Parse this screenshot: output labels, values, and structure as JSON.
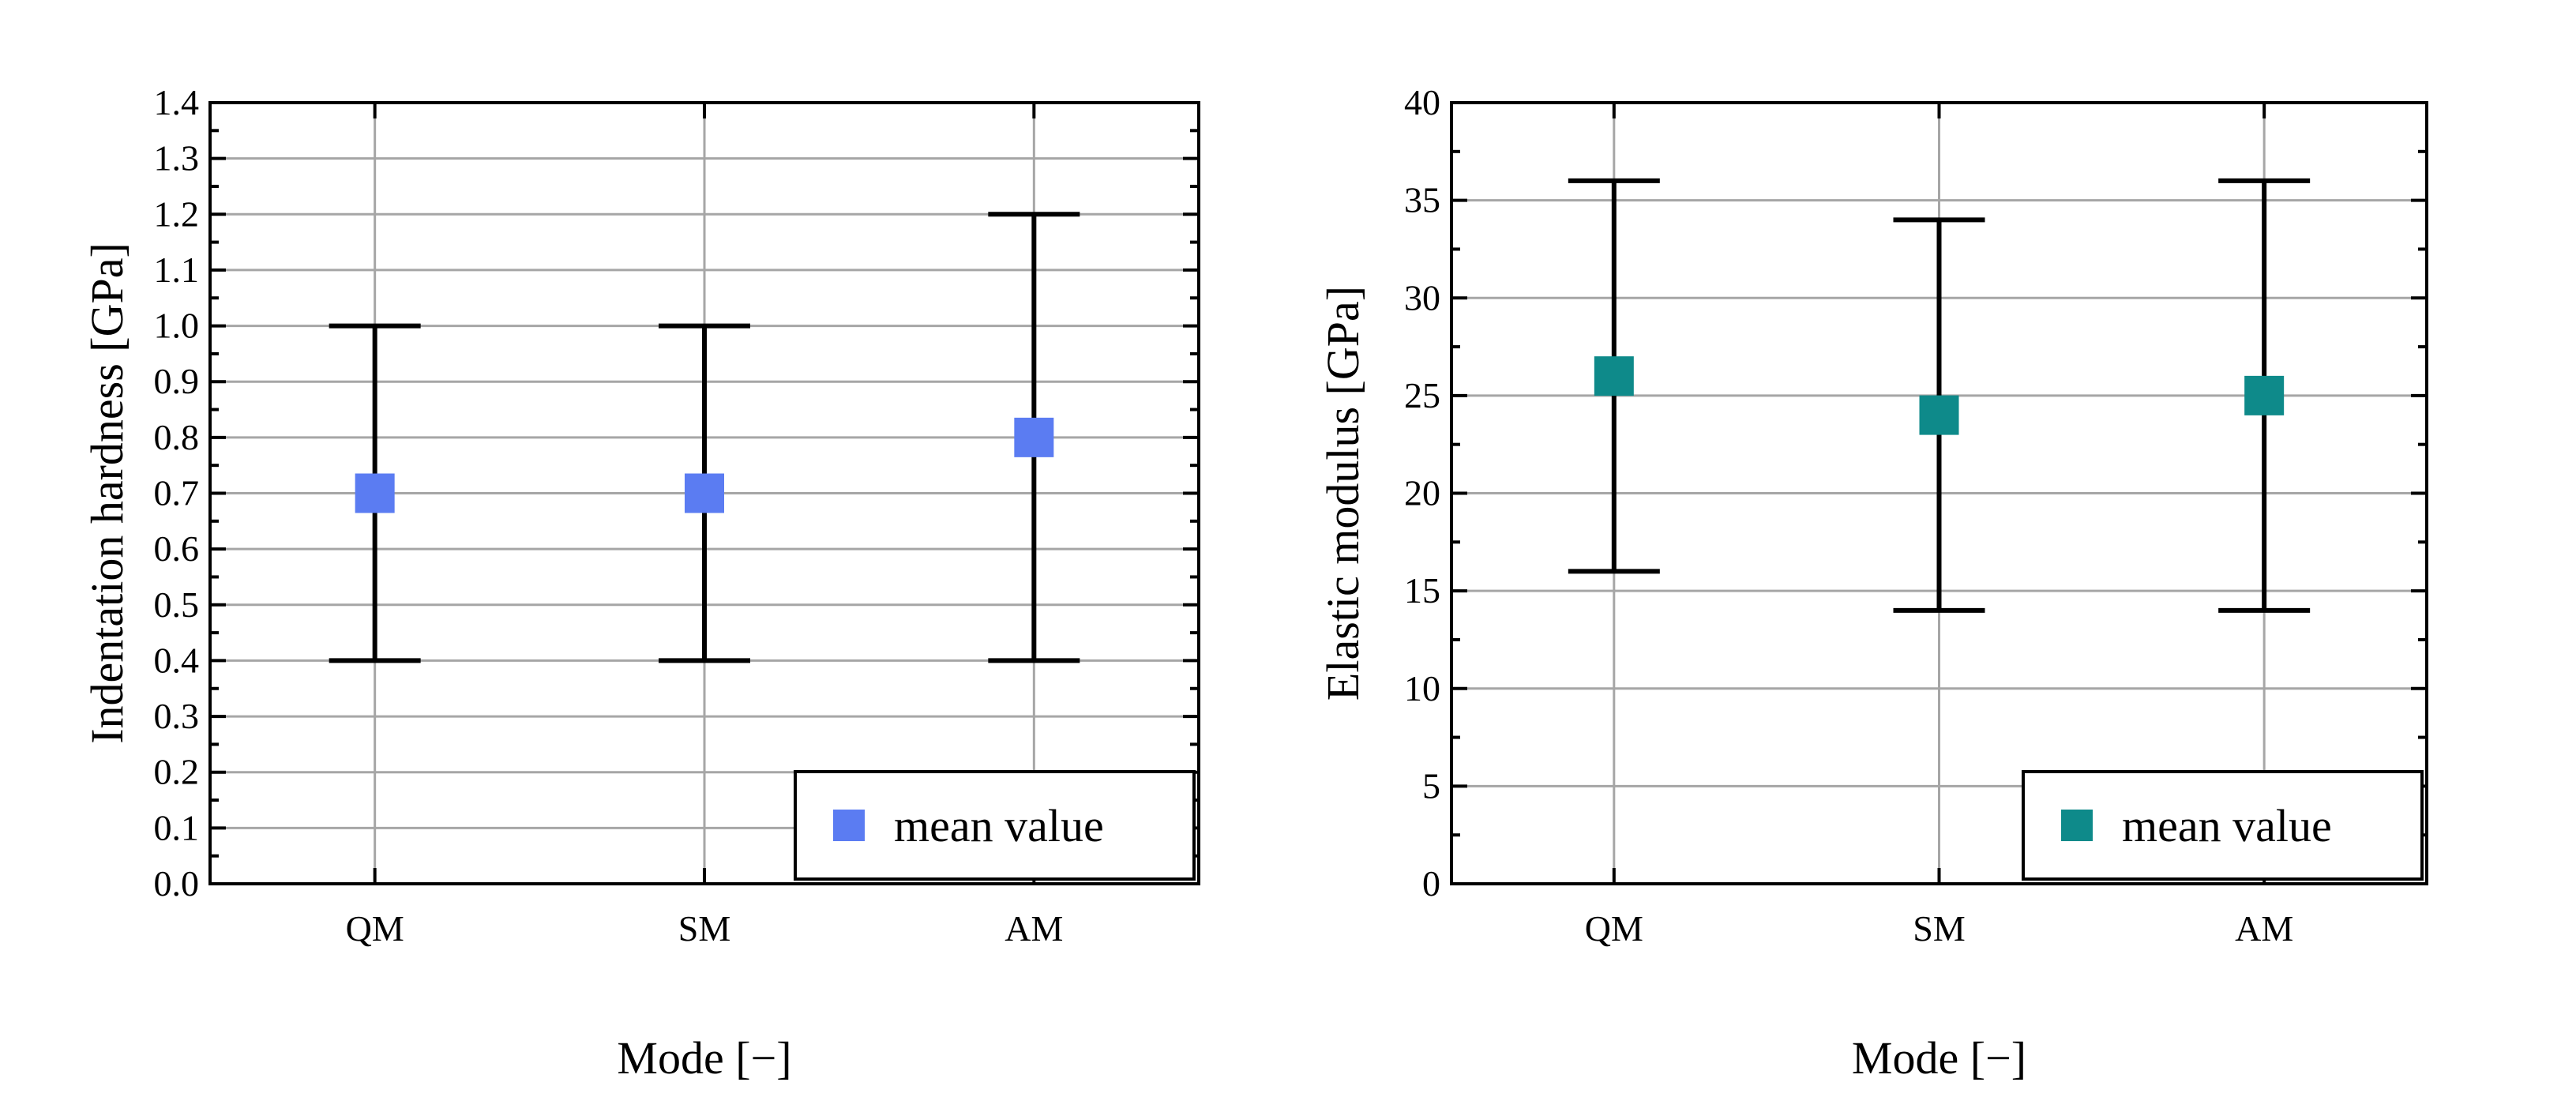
{
  "chart_data": [
    {
      "type": "scatter",
      "categories": [
        "QM",
        "SM",
        "AM"
      ],
      "values": [
        0.7,
        0.7,
        0.8
      ],
      "error_low": [
        0.4,
        0.4,
        0.4
      ],
      "error_high": [
        1.0,
        1.0,
        1.2
      ],
      "xlabel": "Mode [−]",
      "ylabel": "Indentation hardness [GPa]",
      "ylim": [
        0.0,
        1.4
      ],
      "yticks": [
        "0.0",
        "0.1",
        "0.2",
        "0.3",
        "0.4",
        "0.5",
        "0.6",
        "0.7",
        "0.8",
        "0.9",
        "1.0",
        "1.1",
        "1.2",
        "1.3",
        "1.4"
      ],
      "ytick_values": [
        0,
        0.1,
        0.2,
        0.3,
        0.4,
        0.5,
        0.6,
        0.7,
        0.8,
        0.9,
        1.0,
        1.1,
        1.2,
        1.3,
        1.4
      ],
      "grid": true,
      "marker_color": "#5b7cf2",
      "legend": {
        "label": "mean value",
        "position": "bottom-right"
      }
    },
    {
      "type": "scatter",
      "categories": [
        "QM",
        "SM",
        "AM"
      ],
      "values": [
        26,
        24,
        25
      ],
      "error_low": [
        16,
        14,
        14
      ],
      "error_high": [
        36,
        34,
        36
      ],
      "xlabel": "Mode [−]",
      "ylabel": "Elastic modulus [GPa]",
      "ylim": [
        0,
        40
      ],
      "yticks": [
        "0",
        "5",
        "10",
        "15",
        "20",
        "25",
        "30",
        "35",
        "40"
      ],
      "ytick_values": [
        0,
        5,
        10,
        15,
        20,
        25,
        30,
        35,
        40
      ],
      "grid": true,
      "marker_color": "#0e8a8a",
      "legend": {
        "label": "mean value",
        "position": "bottom-right"
      }
    }
  ]
}
